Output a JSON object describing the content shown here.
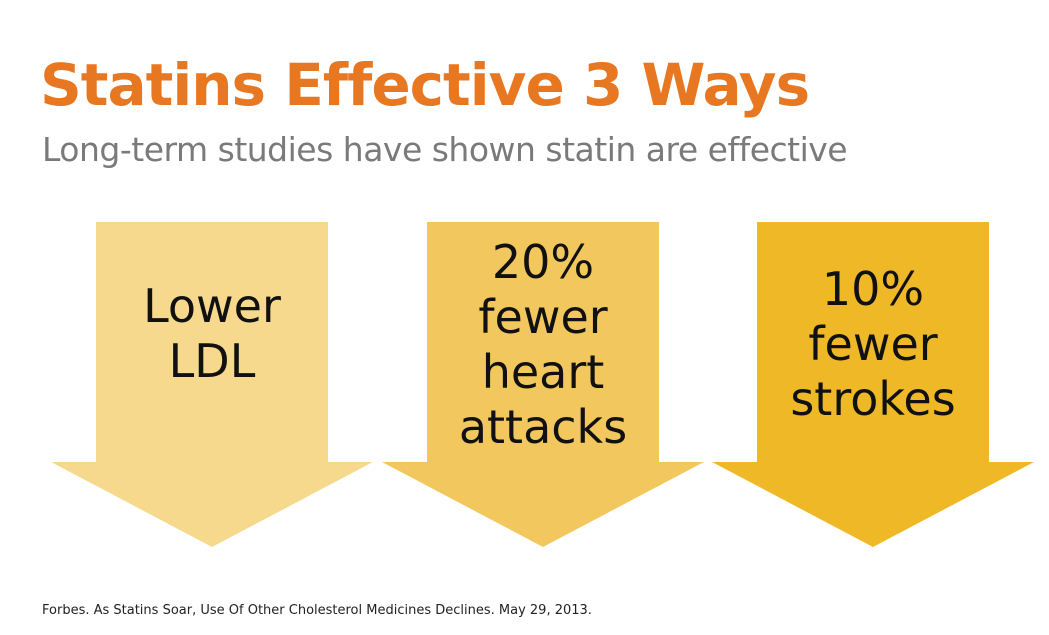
{
  "title": "Statins Effective 3 Ways",
  "subtitle": "Long-term studies have shown statin are effective",
  "arrows": [
    {
      "text": "Lower\nLDL",
      "color": "#f6d98c"
    },
    {
      "text": "20%\nfewer\nheart\nattacks",
      "color": "#f2c85e"
    },
    {
      "text": "10%\nfewer\nstrokes",
      "color": "#efb826"
    }
  ],
  "footnote": "Forbes. As Statins Soar, Use Of Other Cholesterol Medicines Declines. May 29, 2013."
}
